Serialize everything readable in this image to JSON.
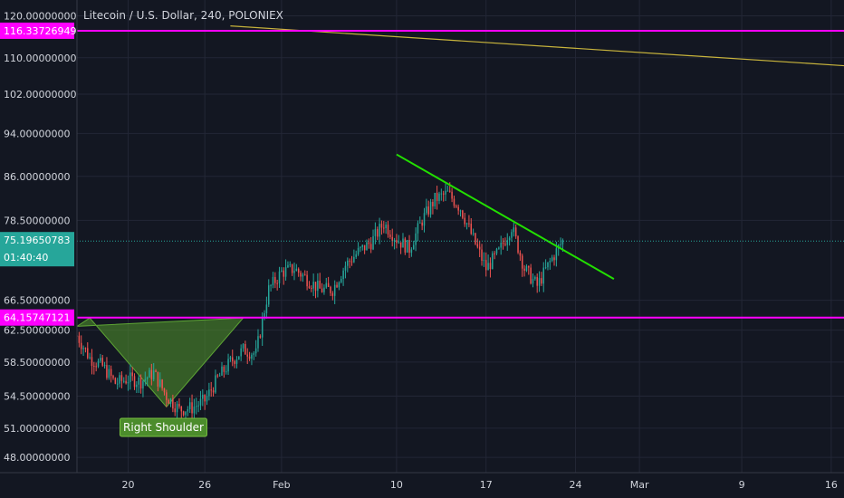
{
  "chart_title": "Litecoin / U.S. Dollar, 240, POLONIEX",
  "colors": {
    "background": "#131722",
    "grid": "#232736",
    "axis_text": "#d1d4dc",
    "candle_up": "#26a69a",
    "candle_down": "#ef5350",
    "magenta": "#ff00ff",
    "yellow_line": "#c8b43c",
    "green_line": "#22e000",
    "pattern_fill": "#4c8c2c",
    "price_badge": "#26a69a"
  },
  "chart_data": {
    "type": "candlestick",
    "title": "Litecoin / U.S. Dollar, 240, POLONIEX",
    "y_scale": "log",
    "ylim": [
      46.5,
      124
    ],
    "y_ticks": [
      {
        "value": 120,
        "label": "120.00000000"
      },
      {
        "value": 110,
        "label": "110.00000000"
      },
      {
        "value": 102,
        "label": "102.00000000"
      },
      {
        "value": 94,
        "label": "94.00000000"
      },
      {
        "value": 86,
        "label": "86.00000000"
      },
      {
        "value": 78.5,
        "label": "78.50000000"
      },
      {
        "value": 66.5,
        "label": "66.50000000"
      },
      {
        "value": 62.5,
        "label": "62.50000000"
      },
      {
        "value": 58.5,
        "label": "58.50000000"
      },
      {
        "value": 54.5,
        "label": "54.50000000"
      },
      {
        "value": 51,
        "label": "51.00000000"
      },
      {
        "value": 48,
        "label": "48.00000000"
      }
    ],
    "xlim": [
      "2019-01-16",
      "2019-03-17"
    ],
    "x_ticks": [
      {
        "date": "2019-01-20",
        "label": "20"
      },
      {
        "date": "2019-01-26",
        "label": "26"
      },
      {
        "date": "2019-02-01",
        "label": "Feb"
      },
      {
        "date": "2019-02-10",
        "label": "10"
      },
      {
        "date": "2019-02-17",
        "label": "17"
      },
      {
        "date": "2019-02-24",
        "label": "24"
      },
      {
        "date": "2019-03-01",
        "label": "Mar"
      },
      {
        "date": "2019-03-09",
        "label": "9"
      },
      {
        "date": "2019-03-16",
        "label": "16"
      }
    ],
    "price_path": [
      {
        "date": "2019-01-16",
        "price": 61.8
      },
      {
        "date": "2019-01-17",
        "price": 59.0
      },
      {
        "date": "2019-01-18",
        "price": 58.0
      },
      {
        "date": "2019-01-19",
        "price": 56.0
      },
      {
        "date": "2019-01-20",
        "price": 56.5
      },
      {
        "date": "2019-01-21",
        "price": 56.2
      },
      {
        "date": "2019-01-22",
        "price": 57.2
      },
      {
        "date": "2019-01-23",
        "price": 54.5
      },
      {
        "date": "2019-01-24",
        "price": 53.0
      },
      {
        "date": "2019-01-25",
        "price": 53.2
      },
      {
        "date": "2019-01-26",
        "price": 54.0
      },
      {
        "date": "2019-01-27",
        "price": 56.5
      },
      {
        "date": "2019-01-28",
        "price": 58.5
      },
      {
        "date": "2019-01-29",
        "price": 60.0
      },
      {
        "date": "2019-01-30",
        "price": 59.5
      },
      {
        "date": "2019-01-31",
        "price": 68.0
      },
      {
        "date": "2019-02-01",
        "price": 70.5
      },
      {
        "date": "2019-02-02",
        "price": 71.0
      },
      {
        "date": "2019-02-03",
        "price": 69.5
      },
      {
        "date": "2019-02-04",
        "price": 68.0
      },
      {
        "date": "2019-02-05",
        "price": 68.0
      },
      {
        "date": "2019-02-06",
        "price": 71.5
      },
      {
        "date": "2019-02-07",
        "price": 73.5
      },
      {
        "date": "2019-02-08",
        "price": 75.0
      },
      {
        "date": "2019-02-09",
        "price": 78.0
      },
      {
        "date": "2019-02-10",
        "price": 75.5
      },
      {
        "date": "2019-02-11",
        "price": 74.0
      },
      {
        "date": "2019-02-12",
        "price": 78.5
      },
      {
        "date": "2019-02-13",
        "price": 82.0
      },
      {
        "date": "2019-02-14",
        "price": 83.0
      },
      {
        "date": "2019-02-15",
        "price": 80.5
      },
      {
        "date": "2019-02-16",
        "price": 75.5
      },
      {
        "date": "2019-02-17",
        "price": 71.0
      },
      {
        "date": "2019-02-18",
        "price": 73.5
      },
      {
        "date": "2019-02-19",
        "price": 77.5
      },
      {
        "date": "2019-02-20",
        "price": 71.0
      },
      {
        "date": "2019-02-21",
        "price": 68.5
      },
      {
        "date": "2019-02-22",
        "price": 72.0
      },
      {
        "date": "2019-02-23",
        "price": 75.2
      }
    ],
    "horizontal_levels": [
      {
        "price": 116.33726949,
        "label": "116.33726949",
        "color": "#ff00ff"
      },
      {
        "price": 64.15747121,
        "label": "64.15747121",
        "color": "#ff00ff"
      }
    ],
    "last_price": {
      "price": 75.19650783,
      "label": "75.19650783",
      "countdown": "01:40:40"
    },
    "trendlines": [
      {
        "name": "long-term-descending",
        "color": "#c8b43c",
        "points": [
          {
            "date": "2019-01-28",
            "price": 117.5
          },
          {
            "date": "2019-03-17",
            "price": 108.2
          }
        ]
      },
      {
        "name": "descending-resistance",
        "color": "#22e000",
        "points": [
          {
            "date": "2019-02-10",
            "price": 90.0
          },
          {
            "date": "2019-02-27",
            "price": 69.5
          }
        ]
      }
    ],
    "pattern": {
      "label": "Right Shoulder",
      "points": [
        {
          "date": "2019-01-16",
          "price": 63.0
        },
        {
          "date": "2019-01-17",
          "price": 64.1
        },
        {
          "date": "2019-01-23",
          "price": 53.3
        },
        {
          "date": "2019-01-29",
          "price": 64.1
        }
      ]
    }
  }
}
